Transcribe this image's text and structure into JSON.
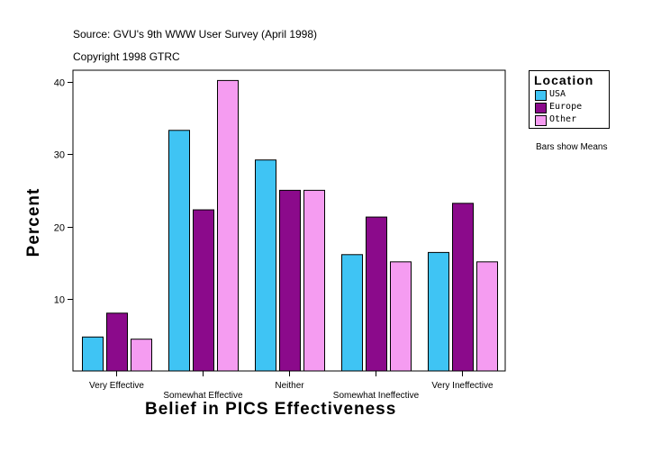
{
  "chart_data": {
    "type": "bar",
    "title": "",
    "source_lines": [
      "Source: GVU's 9th WWW User Survey (April 1998)",
      "Copyright 1998 GTRC"
    ],
    "xlabel": "Belief in PICS Effectiveness",
    "ylabel": "Percent",
    "ylim": [
      0,
      40
    ],
    "yticks": [
      10,
      20,
      30,
      40
    ],
    "categories": [
      "Very Effective",
      "Somewhat Effective",
      "Neither",
      "Somewhat Ineffective",
      "Very Ineffective"
    ],
    "series": [
      {
        "name": "USA",
        "color": "#3FC4F4",
        "values": [
          4.7,
          33.3,
          29.2,
          16.1,
          16.4
        ]
      },
      {
        "name": "Europe",
        "color": "#8B0A8B",
        "values": [
          8.0,
          22.3,
          25.0,
          21.3,
          23.2
        ]
      },
      {
        "name": "Other",
        "color": "#F59CF1",
        "values": [
          4.4,
          40.2,
          25.0,
          15.1,
          15.1
        ]
      }
    ],
    "legend_title": "Location",
    "note": "Bars show Means"
  }
}
